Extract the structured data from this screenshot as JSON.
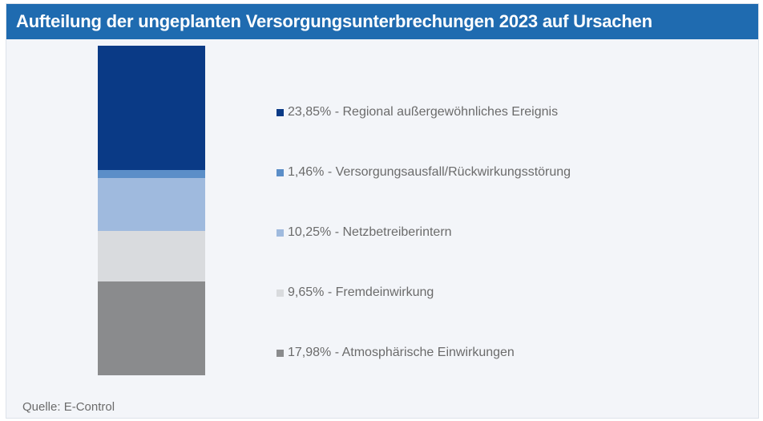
{
  "title": "Aufteilung der ungeplanten Versorgungsunterbrechungen 2023 auf Ursachen",
  "source": "Quelle: E-Control",
  "chart_data": {
    "type": "bar",
    "stacked": true,
    "title": "Aufteilung der ungeplanten Versorgungsunterbrechungen 2023 auf Ursachen",
    "legend_position": "right",
    "series": [
      {
        "name": "Regional außergewöhnliches Ereignis",
        "value": 23.85,
        "label": "23,85% - Regional außergewöhnliches Ereignis",
        "color": "#0a3a86"
      },
      {
        "name": "Versorgungsausfall/Rückwirkungsstörung",
        "value": 1.46,
        "label": "1,46% - Versorgungsausfall/Rückwirkungsstörung",
        "color": "#5b8ec8"
      },
      {
        "name": "Netzbetreiberintern",
        "value": 10.25,
        "label": "10,25% - Netzbetreiberintern",
        "color": "#9fbade"
      },
      {
        "name": "Fremdeinwirkung",
        "value": 9.65,
        "label": "9,65% - Fremdeinwirkung",
        "color": "#d9dbde"
      },
      {
        "name": "Atmosphärische Einwirkungen",
        "value": 17.98,
        "label": "17,98% - Atmosphärische Einwirkungen",
        "color": "#8a8b8d"
      }
    ]
  }
}
